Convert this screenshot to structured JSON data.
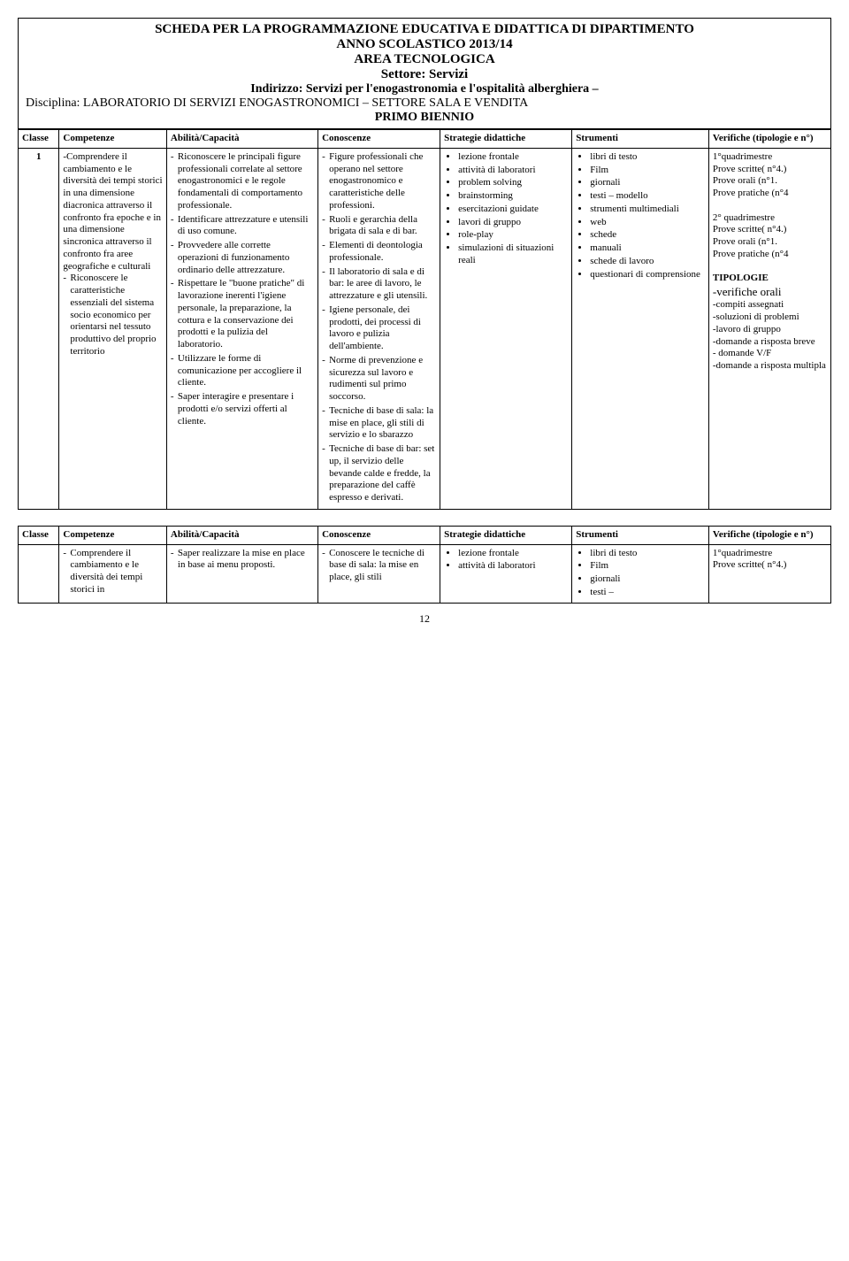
{
  "header": {
    "line1": "SCHEDA PER LA PROGRAMMAZIONE EDUCATIVA E DIDATTICA DI DIPARTIMENTO",
    "line2": "ANNO SCOLASTICO 2013/14",
    "line3": "AREA TECNOLOGICA",
    "settore": "Settore: Servizi",
    "indirizzo": "Indirizzo: Servizi per l'enogastronomia e l'ospitalità alberghiera –",
    "disciplina": "Disciplina: LABORATORIO DI SERVIZI ENOGASTRONOMICI – SETTORE SALA E VENDITA",
    "biennio": "PRIMO  BIENNIO"
  },
  "cols": {
    "classe": "Classe",
    "competenze": "Competenze",
    "abilita": "Abilità/Capacità",
    "conoscenze": "Conoscenze",
    "strategie": "Strategie didattiche",
    "strumenti": "Strumenti",
    "verifiche": "Verifiche (tipologie e n°)"
  },
  "row1": {
    "classe": "1",
    "competenze": [
      "-Comprendere il cambiamento e le diversità dei tempi storici in una dimensione diacronica attraverso il confronto fra epoche e in una dimensione sincronica attraverso il confronto fra aree geografiche e culturali",
      "Riconoscere le caratteristiche essenziali del sistema socio economico per orientarsi nel tessuto produttivo del proprio territorio"
    ],
    "abilita": [
      "Riconoscere le principali figure professionali correlate al settore enogastronomici e le regole fondamentali di comportamento professionale.",
      "Identificare attrezzature e utensili di uso comune.",
      "Provvedere alle corrette operazioni di funzionamento ordinario delle attrezzature.",
      "Rispettare le \"buone pratiche\" di lavorazione inerenti l'igiene personale, la preparazione, la cottura e la conservazione dei prodotti e la pulizia del laboratorio.",
      "Utilizzare le forme di comunicazione per accogliere il cliente.",
      "Saper interagire e presentare i prodotti e/o servizi offerti al cliente."
    ],
    "conoscenze": [
      "Figure professionali che operano nel settore enogastronomico e caratteristiche delle professioni.",
      "Ruoli e gerarchia della brigata di sala e di bar.",
      "Elementi di deontologia professionale.",
      "Il laboratorio di sala e di bar: le aree di lavoro, le attrezzature e gli utensili.",
      "Igiene personale, dei prodotti, dei processi di lavoro e pulizia dell'ambiente.",
      "Norme di prevenzione e sicurezza sul lavoro e rudimenti sul primo soccorso.",
      "Tecniche di base di sala: la mise en place, gli stili di servizio e lo sbarazzo",
      "Tecniche di base di bar: set up, il servizio delle bevande calde e fredde, la preparazione del caffè espresso e derivati."
    ],
    "strategie": [
      "lezione frontale",
      "attività di laboratori",
      "problem solving",
      "brainstorming",
      "esercitazioni guidate",
      "lavori di gruppo",
      "role-play",
      "simulazioni di situazioni reali"
    ],
    "strumenti": [
      "libri di testo",
      "Film",
      "giornali",
      "testi – modello",
      "strumenti multimediali",
      "web",
      "schede",
      "manuali",
      "schede di lavoro",
      "questionari di comprensione"
    ],
    "verifiche": {
      "q1_title": "1°quadrimestre",
      "q1_lines": [
        "Prove scritte( n°4.)",
        "Prove orali (n°1.",
        "Prove pratiche (n°4"
      ],
      "q2_title": "2° quadrimestre",
      "q2_lines": [
        "Prove scritte( n°4.)",
        "Prove orali (n°1.",
        "Prove pratiche (n°4"
      ],
      "tip_title": "TIPOLOGIE",
      "tip_items": [
        "-verifiche orali",
        "-compiti assegnati",
        "-soluzioni di problemi",
        "-lavoro di gruppo",
        "-domande a risposta breve",
        "- domande V/F",
        "-domande a risposta multipla"
      ]
    }
  },
  "row2": {
    "competenze": [
      "Comprendere il cambiamento e le diversità dei tempi storici in"
    ],
    "abilita": [
      "Saper realizzare la mise en place in base ai menu proposti."
    ],
    "conoscenze": [
      "Conoscere le tecniche di base di sala: la mise en place, gli stili"
    ],
    "strategie": [
      "lezione frontale",
      "attività di laboratori"
    ],
    "strumenti": [
      "libri di testo",
      "Film",
      "giornali",
      "testi –"
    ],
    "verifiche": {
      "q1_title": "1°quadrimestre",
      "q1_lines": [
        "Prove scritte( n°4.)"
      ]
    }
  },
  "page_number": "12"
}
